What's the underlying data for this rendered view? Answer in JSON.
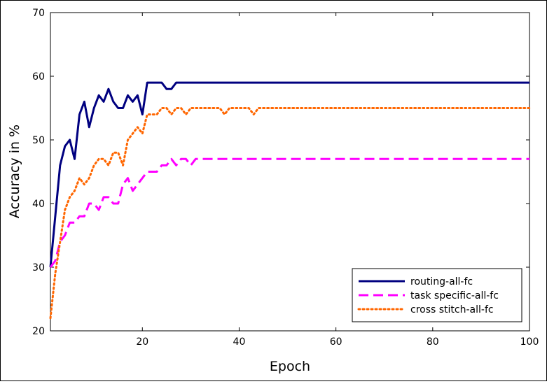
{
  "chart_data": {
    "type": "line",
    "title": "",
    "xlabel": "Epoch",
    "ylabel": "Accuracy in %",
    "xlim": [
      1,
      100
    ],
    "ylim": [
      20,
      70
    ],
    "xticks": [
      20,
      40,
      60,
      80,
      100
    ],
    "yticks": [
      20,
      30,
      40,
      50,
      60,
      70
    ],
    "grid": false,
    "legend_position": "bottom-right",
    "series": [
      {
        "name": "routing-all-fc",
        "color": "#000080",
        "style": "solid",
        "x": [
          1,
          2,
          3,
          4,
          5,
          6,
          7,
          8,
          9,
          10,
          11,
          12,
          13,
          14,
          15,
          16,
          17,
          18,
          19,
          20,
          21,
          22,
          23,
          24,
          25,
          26,
          27,
          28,
          29,
          30,
          40,
          50,
          60,
          70,
          80,
          90,
          100
        ],
        "y": [
          30,
          38,
          46,
          49,
          50,
          47,
          54,
          56,
          52,
          55,
          57,
          56,
          58,
          56,
          55,
          55,
          57,
          56,
          57,
          54,
          59,
          59,
          59,
          59,
          58,
          58,
          59,
          59,
          59,
          59,
          59,
          59,
          59,
          59,
          59,
          59,
          59
        ]
      },
      {
        "name": "task specific-all-fc",
        "color": "#ff00ff",
        "style": "dashed",
        "x": [
          1,
          2,
          3,
          4,
          5,
          6,
          7,
          8,
          9,
          10,
          11,
          12,
          13,
          14,
          15,
          16,
          17,
          18,
          19,
          20,
          21,
          22,
          23,
          24,
          25,
          26,
          27,
          28,
          29,
          30,
          31,
          40,
          50,
          60,
          70,
          80,
          90,
          100
        ],
        "y": [
          30,
          31,
          34,
          35,
          37,
          37,
          38,
          38,
          40,
          40,
          39,
          41,
          41,
          40,
          40,
          43,
          44,
          42,
          43,
          44,
          45,
          45,
          45,
          46,
          46,
          47,
          46,
          47,
          47,
          46,
          47,
          47,
          47,
          47,
          47,
          47,
          47,
          47
        ]
      },
      {
        "name": "cross stitch-all-fc",
        "color": "#ff6600",
        "style": "dotted",
        "x": [
          1,
          2,
          3,
          4,
          5,
          6,
          7,
          8,
          9,
          10,
          11,
          12,
          13,
          14,
          15,
          16,
          17,
          18,
          19,
          20,
          21,
          22,
          23,
          24,
          25,
          26,
          27,
          28,
          29,
          30,
          32,
          35,
          36,
          37,
          38,
          40,
          41,
          42,
          43,
          44,
          46,
          50,
          60,
          70,
          80,
          90,
          100
        ],
        "y": [
          22,
          29,
          34,
          39,
          41,
          42,
          44,
          43,
          44,
          46,
          47,
          47,
          46,
          48,
          48,
          46,
          50,
          51,
          52,
          51,
          54,
          54,
          54,
          55,
          55,
          54,
          55,
          55,
          54,
          55,
          55,
          55,
          55,
          54,
          55,
          55,
          55,
          55,
          54,
          55,
          55,
          55,
          55,
          55,
          55,
          55,
          55
        ]
      }
    ]
  }
}
